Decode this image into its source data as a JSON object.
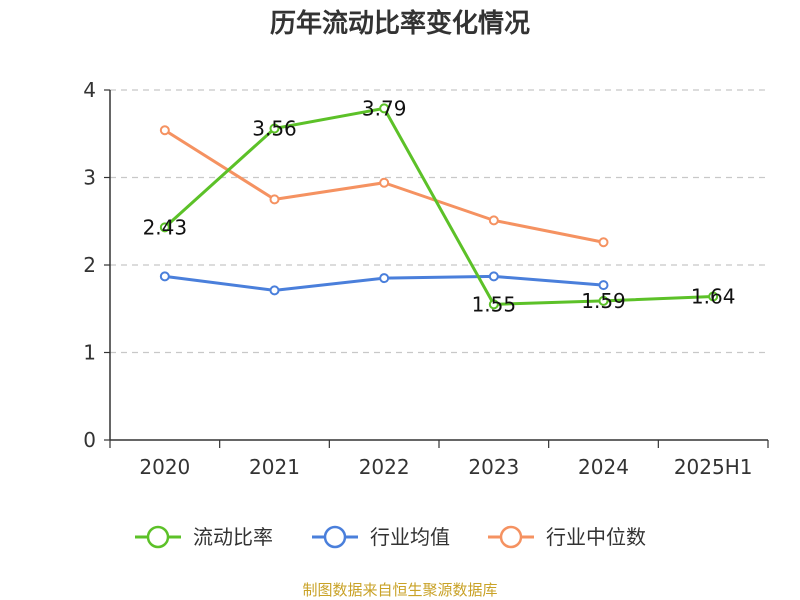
{
  "chart_data": {
    "type": "line",
    "title": "历年流动比率变化情况",
    "xlabel": "",
    "ylabel": "",
    "categories": [
      "2020",
      "2021",
      "2022",
      "2023",
      "2024",
      "2025H1"
    ],
    "ylim": [
      0,
      4
    ],
    "yticks": [
      "0",
      "1",
      "2",
      "3",
      "4"
    ],
    "grid": true,
    "legend_position": "bottom",
    "series": [
      {
        "name": "流动比率",
        "color": "#5cc128",
        "values": [
          2.43,
          3.56,
          3.79,
          1.55,
          1.59,
          1.64
        ],
        "labels": [
          "2.43",
          "3.56",
          "3.79",
          "1.55",
          "1.59",
          "1.64"
        ]
      },
      {
        "name": "行业均值",
        "color": "#4a7fdb",
        "values": [
          1.87,
          1.71,
          1.85,
          1.87,
          1.77,
          null
        ],
        "labels": []
      },
      {
        "name": "行业中位数",
        "color": "#f59261",
        "values": [
          3.54,
          2.75,
          2.94,
          2.51,
          2.26,
          null
        ],
        "labels": []
      }
    ]
  },
  "source": "制图数据来自恒生聚源数据库"
}
